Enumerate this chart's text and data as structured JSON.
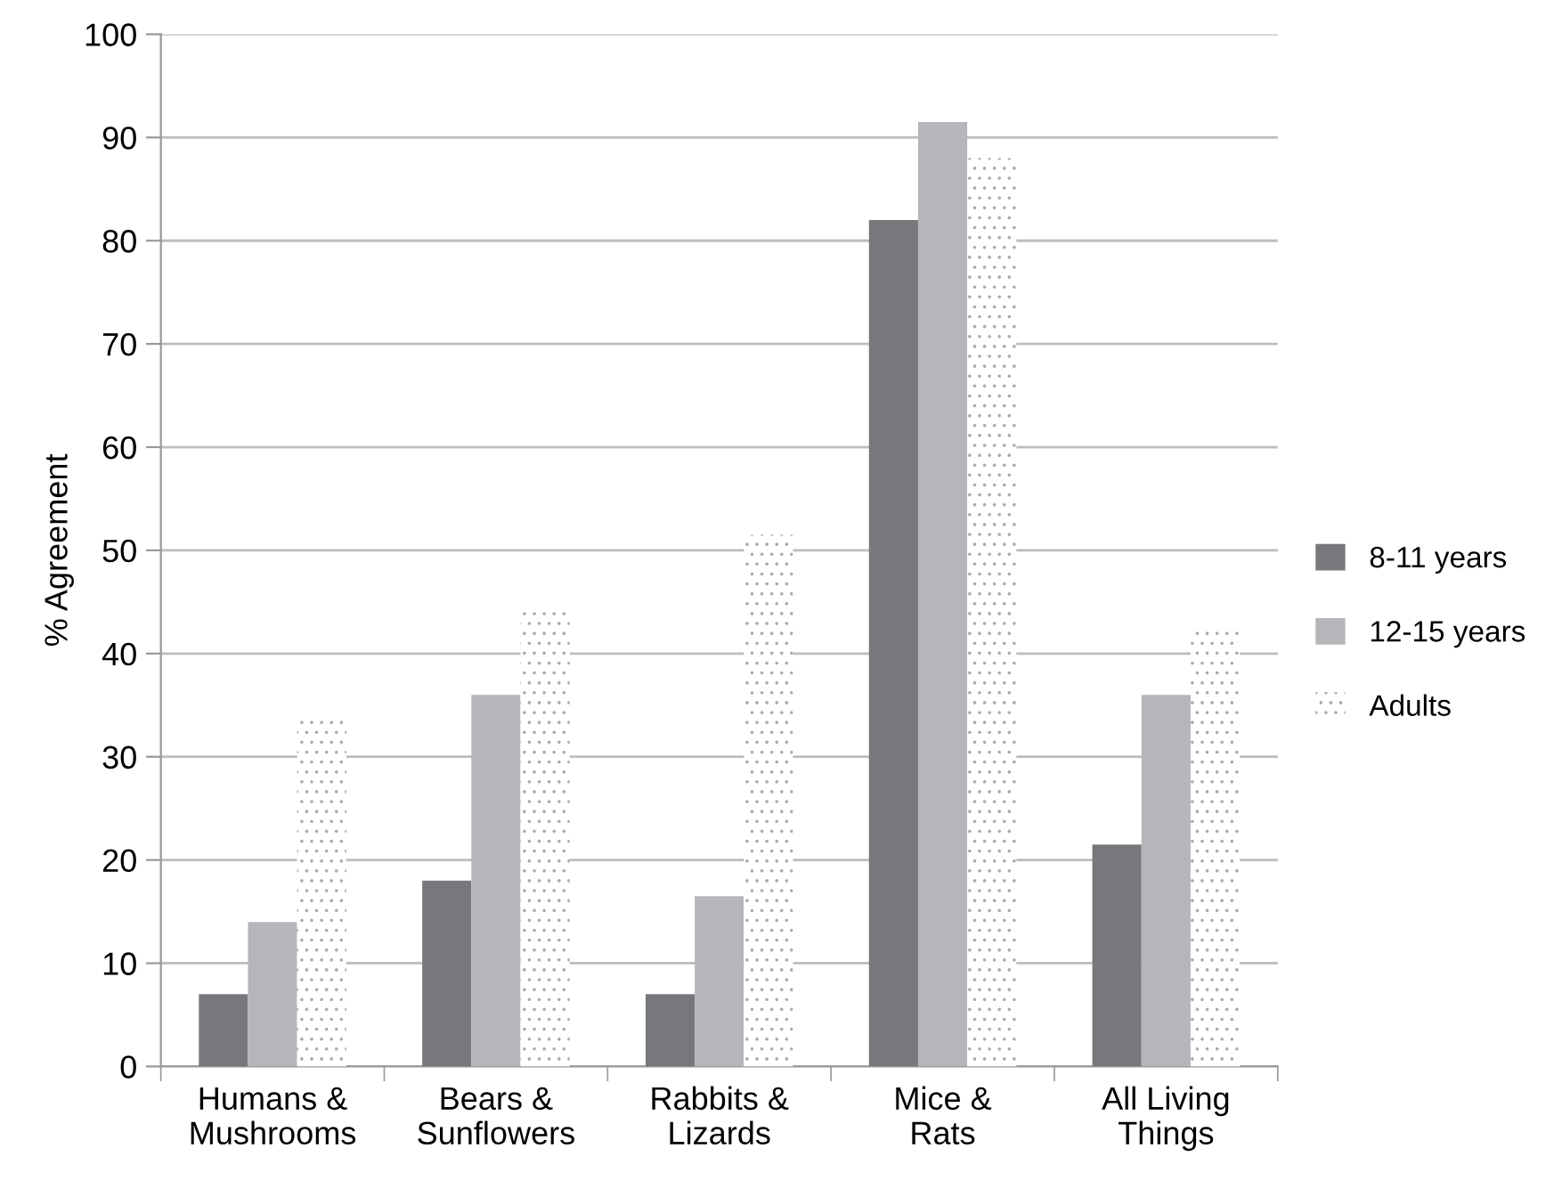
{
  "chart_data": {
    "type": "bar",
    "ylabel": "% Agreement",
    "categories": [
      "Humans &\nMushrooms",
      "Bears &\nSunflowers",
      "Rabbits &\nLizards",
      "Mice &\nRats",
      "All Living\nThings"
    ],
    "series": [
      {
        "name": "8-11 years",
        "color": "#77787c",
        "values": [
          7,
          18,
          7,
          82,
          21.5
        ]
      },
      {
        "name": "12-15 years",
        "color": "#b5b6b9",
        "values": [
          14,
          36,
          16.5,
          91.5,
          36
        ]
      },
      {
        "name": "Adults",
        "color": "#ffffff",
        "values": [
          34,
          44,
          51.5,
          88,
          42.5
        ]
      }
    ],
    "ylim": [
      0,
      100
    ],
    "yticks": [
      0,
      10,
      20,
      30,
      40,
      50,
      60,
      70,
      80,
      90,
      100
    ],
    "grid": "y",
    "legend": "right"
  }
}
